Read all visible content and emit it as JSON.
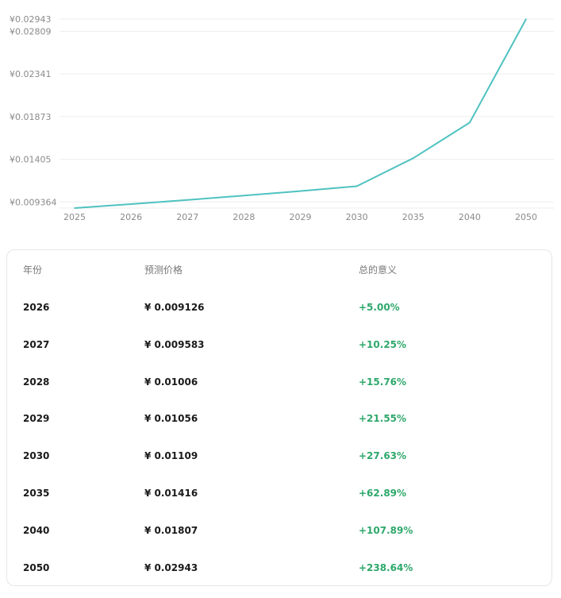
{
  "chart_data": {
    "type": "line",
    "x": [
      "2025",
      "2026",
      "2027",
      "2028",
      "2029",
      "2030",
      "2035",
      "2040",
      "2050"
    ],
    "series": [
      {
        "values": [
          0.008692,
          0.009126,
          0.009583,
          0.01006,
          0.01056,
          0.01109,
          0.01416,
          0.01807,
          0.02943
        ]
      }
    ],
    "y_ticks": [
      "¥0.009364",
      "¥0.01405",
      "¥0.01873",
      "¥0.02341",
      "¥0.02809",
      "¥0.02943"
    ],
    "y_tick_values": [
      0.009364,
      0.01405,
      0.01873,
      0.02341,
      0.02809,
      0.02943
    ],
    "ylim": [
      0.008692,
      0.02943
    ],
    "grid": true,
    "line_color": "#4fc2c0"
  },
  "table": {
    "headers": {
      "year": "年份",
      "price": "预测价格",
      "change": "总的意义"
    },
    "rows": [
      {
        "year": "2026",
        "price": "¥ 0.009126",
        "change": "+5.00%"
      },
      {
        "year": "2027",
        "price": "¥ 0.009583",
        "change": "+10.25%"
      },
      {
        "year": "2028",
        "price": "¥ 0.01006",
        "change": "+15.76%"
      },
      {
        "year": "2029",
        "price": "¥ 0.01056",
        "change": "+21.55%"
      },
      {
        "year": "2030",
        "price": "¥ 0.01109",
        "change": "+27.63%"
      },
      {
        "year": "2035",
        "price": "¥ 0.01416",
        "change": "+62.89%"
      },
      {
        "year": "2040",
        "price": "¥ 0.01807",
        "change": "+107.89%"
      },
      {
        "year": "2050",
        "price": "¥ 0.02943",
        "change": "+238.64%"
      }
    ]
  }
}
